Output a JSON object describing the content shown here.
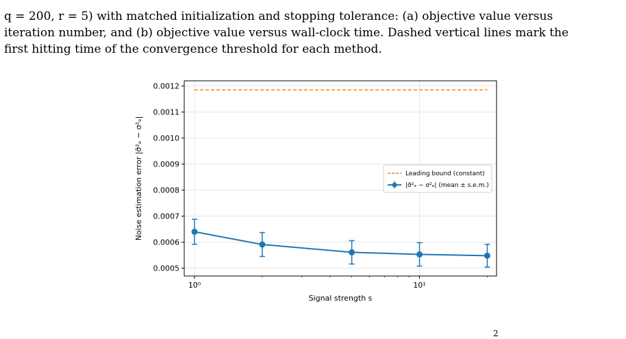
{
  "caption": {
    "line1": "q = 200, r = 5) with matched initialization and stopping tolerance: (a) objective value versus",
    "line2": "iteration number, and (b) objective value versus wall-clock time. Dashed vertical lines mark the",
    "line3": "first hitting time of the convergence threshold for each method."
  },
  "footer_fragment": "2",
  "colors": {
    "series": "#1f77b4",
    "bound": "#ff7f0e",
    "grid": "#e6e6e6"
  },
  "chart_data": {
    "type": "line",
    "xlabel": "Signal strength s",
    "ylabel": "Noise estimation error |σ̂²ₑ − σ²ₑ|",
    "xscale": "log",
    "xlim": [
      0.9,
      22
    ],
    "ylim": [
      0.00047,
      0.00122
    ],
    "xticks": [
      {
        "value": 1,
        "label": "10⁰"
      },
      {
        "value": 10,
        "label": "10¹"
      }
    ],
    "yticks": [
      "0.0005",
      "0.0006",
      "0.0007",
      "0.0008",
      "0.0009",
      "0.0010",
      "0.0011",
      "0.0012"
    ],
    "grid": true,
    "legend_position": "center-right",
    "series": [
      {
        "name": "Leading bound (constant)",
        "style": "dashed",
        "x": [
          1,
          20
        ],
        "y": [
          0.001185,
          0.001185
        ]
      },
      {
        "name": "|σ̂²ₑ − σ²ₑ| (mean ± s.e.m.)",
        "style": "solid-marker",
        "x": [
          1,
          2,
          5,
          10,
          20
        ],
        "y": [
          0.00064,
          0.000591,
          0.000561,
          0.000553,
          0.000548
        ],
        "err": [
          4.8e-05,
          4.6e-05,
          4.5e-05,
          4.5e-05,
          4.4e-05
        ]
      }
    ]
  }
}
